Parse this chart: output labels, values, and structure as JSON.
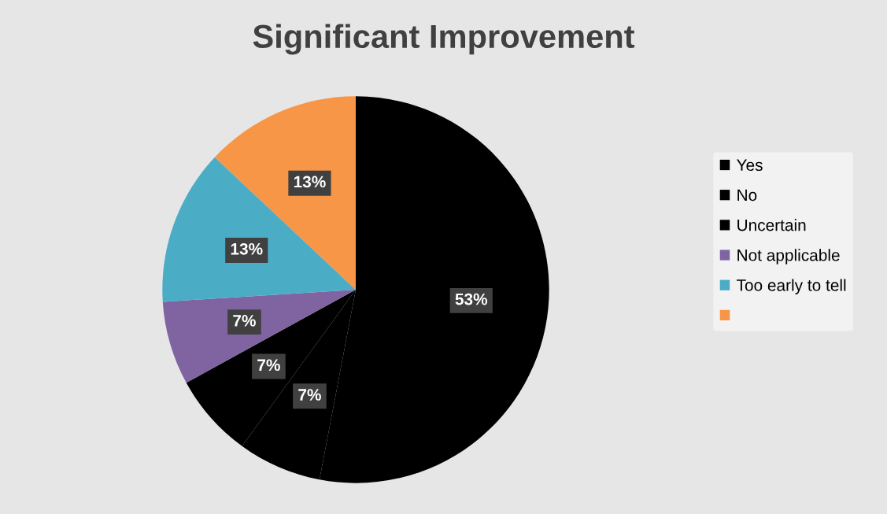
{
  "chart_data": {
    "type": "pie",
    "title": "Significant Improvement",
    "categories": [
      "Yes",
      "No",
      "Uncertain",
      "Not applicable",
      "Too early to tell",
      null
    ],
    "values": [
      53,
      7,
      7,
      7,
      13,
      13
    ],
    "colors": [
      "#000000",
      "#000000",
      "#000000",
      "#8064a2",
      "#4bacc6",
      "#f79646"
    ],
    "value_labels": [
      "53%",
      "7%",
      "7%",
      "7%",
      "13%",
      "13%"
    ],
    "legend": "right"
  }
}
